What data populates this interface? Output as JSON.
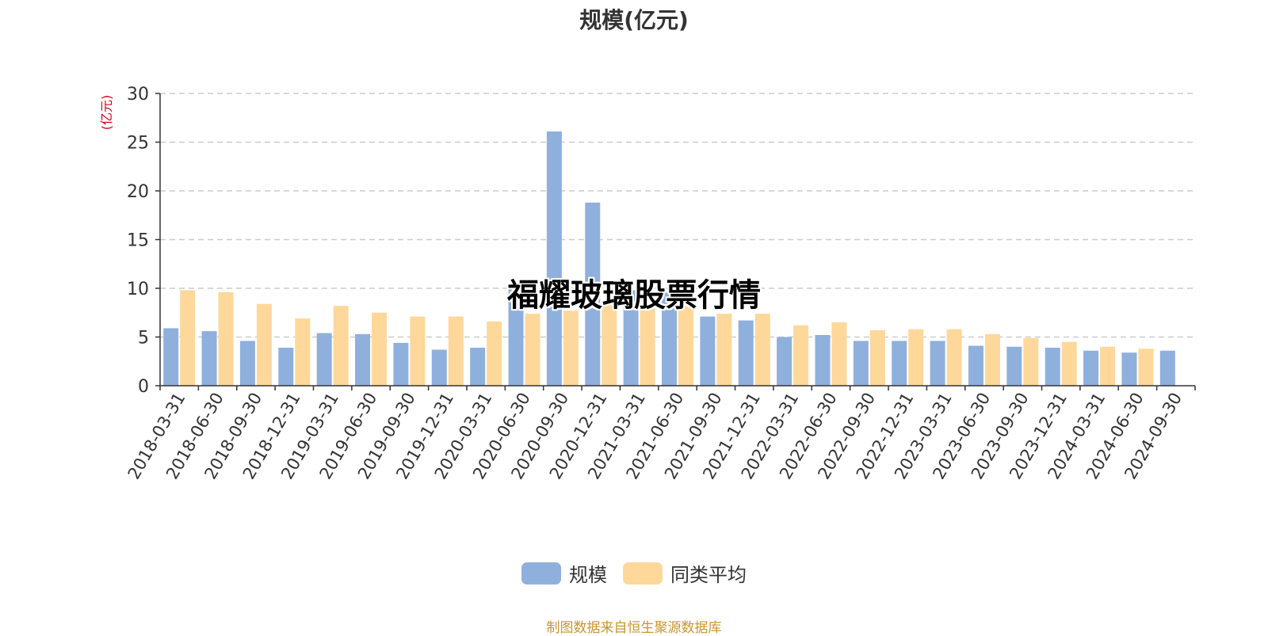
{
  "colors": {
    "series_primary": "#8fb0dd",
    "series_average": "#fed89a",
    "axis_unit": "#d0021b",
    "axis_line": "#333333",
    "grid": "#cccccc",
    "source_text": "#c8962e"
  },
  "watermark": "福耀玻璃股票行情",
  "source_note": "制图数据来自恒生聚源数据库",
  "chart_data": {
    "type": "bar",
    "title": "规模(亿元)",
    "ylabel": "(亿元)",
    "xlabel": "",
    "ylim": [
      0,
      30
    ],
    "yticks": [
      0,
      5,
      10,
      15,
      20,
      25,
      30
    ],
    "grid": true,
    "legend_position": "bottom-center",
    "categories": [
      "2018-03-31",
      "2018-06-30",
      "2018-09-30",
      "2018-12-31",
      "2019-03-31",
      "2019-06-30",
      "2019-09-30",
      "2019-12-31",
      "2020-03-31",
      "2020-06-30",
      "2020-09-30",
      "2020-12-31",
      "2021-03-31",
      "2021-06-30",
      "2021-09-30",
      "2021-12-31",
      "2022-03-31",
      "2022-06-30",
      "2022-09-30",
      "2022-12-31",
      "2023-03-31",
      "2023-06-30",
      "2023-09-30",
      "2023-12-31",
      "2024-03-31",
      "2024-06-30",
      "2024-09-30"
    ],
    "series": [
      {
        "name": "规模",
        "values": [
          5.9,
          5.6,
          4.6,
          3.9,
          5.4,
          5.3,
          4.4,
          3.7,
          3.9,
          9.9,
          26.1,
          18.8,
          9.8,
          9.6,
          7.1,
          6.7,
          5.0,
          5.2,
          4.6,
          4.6,
          4.6,
          4.1,
          4.0,
          3.9,
          3.6,
          3.4,
          3.6
        ]
      },
      {
        "name": "同类平均",
        "values": [
          9.8,
          9.6,
          8.4,
          6.9,
          8.2,
          7.5,
          7.1,
          7.1,
          6.6,
          7.4,
          7.7,
          8.5,
          8.0,
          8.3,
          7.4,
          7.4,
          6.2,
          6.5,
          5.7,
          5.8,
          5.8,
          5.3,
          4.9,
          4.5,
          4.0,
          3.8,
          null
        ]
      }
    ]
  }
}
